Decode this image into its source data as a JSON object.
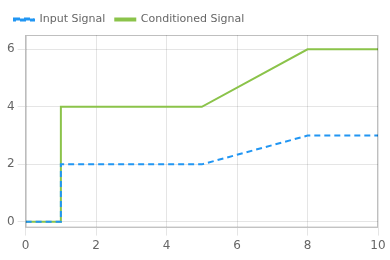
{
  "chart_data": {
    "type": "line",
    "x": [
      0,
      1,
      1,
      5,
      8,
      10
    ],
    "series": [
      {
        "name": "Input Signal",
        "color": "#2196F3",
        "values": [
          0,
          0,
          2,
          2,
          3,
          3
        ],
        "line_style": "dashed"
      },
      {
        "name": "Conditioned Signal",
        "color": "#8BC34A",
        "values": [
          0,
          0,
          4,
          4,
          6,
          6
        ],
        "line_style": "solid"
      }
    ],
    "xlim": [
      0,
      10
    ],
    "ylim": [
      -0.2,
      6.5
    ],
    "xticks": [
      0,
      2,
      4,
      6,
      8,
      10
    ],
    "yticks": [
      0,
      2,
      4,
      6
    ],
    "grid": true,
    "legend": "upper left"
  }
}
